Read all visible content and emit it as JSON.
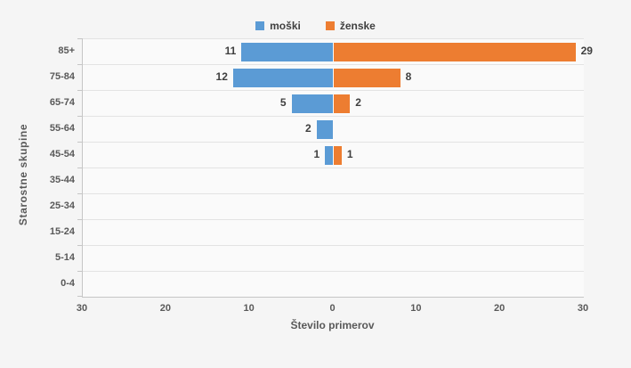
{
  "chart_style": {
    "background": "#f5f5f5",
    "plot_background": "#fafafa",
    "gridline_color": "#e3e3e3",
    "axis_line_color": "#c6c6c6",
    "tick_label_color": "#595959",
    "data_label_color": "#3f3f3f"
  },
  "chart_data": {
    "type": "bar",
    "orientation": "horizontal-diverging",
    "categories": [
      "85+",
      "75-84",
      "65-74",
      "55-64",
      "45-54",
      "35-44",
      "25-34",
      "15-24",
      "5-14",
      "0-4"
    ],
    "series": [
      {
        "name": "moški",
        "color": "#5B9BD5",
        "side": "left",
        "values": [
          11,
          12,
          5,
          2,
          1,
          0,
          0,
          0,
          0,
          0
        ]
      },
      {
        "name": "ženske",
        "color": "#ED7D31",
        "side": "right",
        "values": [
          29,
          8,
          2,
          0,
          1,
          0,
          0,
          0,
          0,
          0
        ]
      }
    ],
    "xlabel": "Število primerov",
    "ylabel": "Starostne skupine",
    "xlim": [
      -30,
      30
    ],
    "xticks": [
      "30",
      "20",
      "10",
      "0",
      "10",
      "20",
      "30"
    ],
    "grid": true,
    "legend_position": "top-center",
    "data_labels": "outside-end, hidden when value is 0"
  }
}
